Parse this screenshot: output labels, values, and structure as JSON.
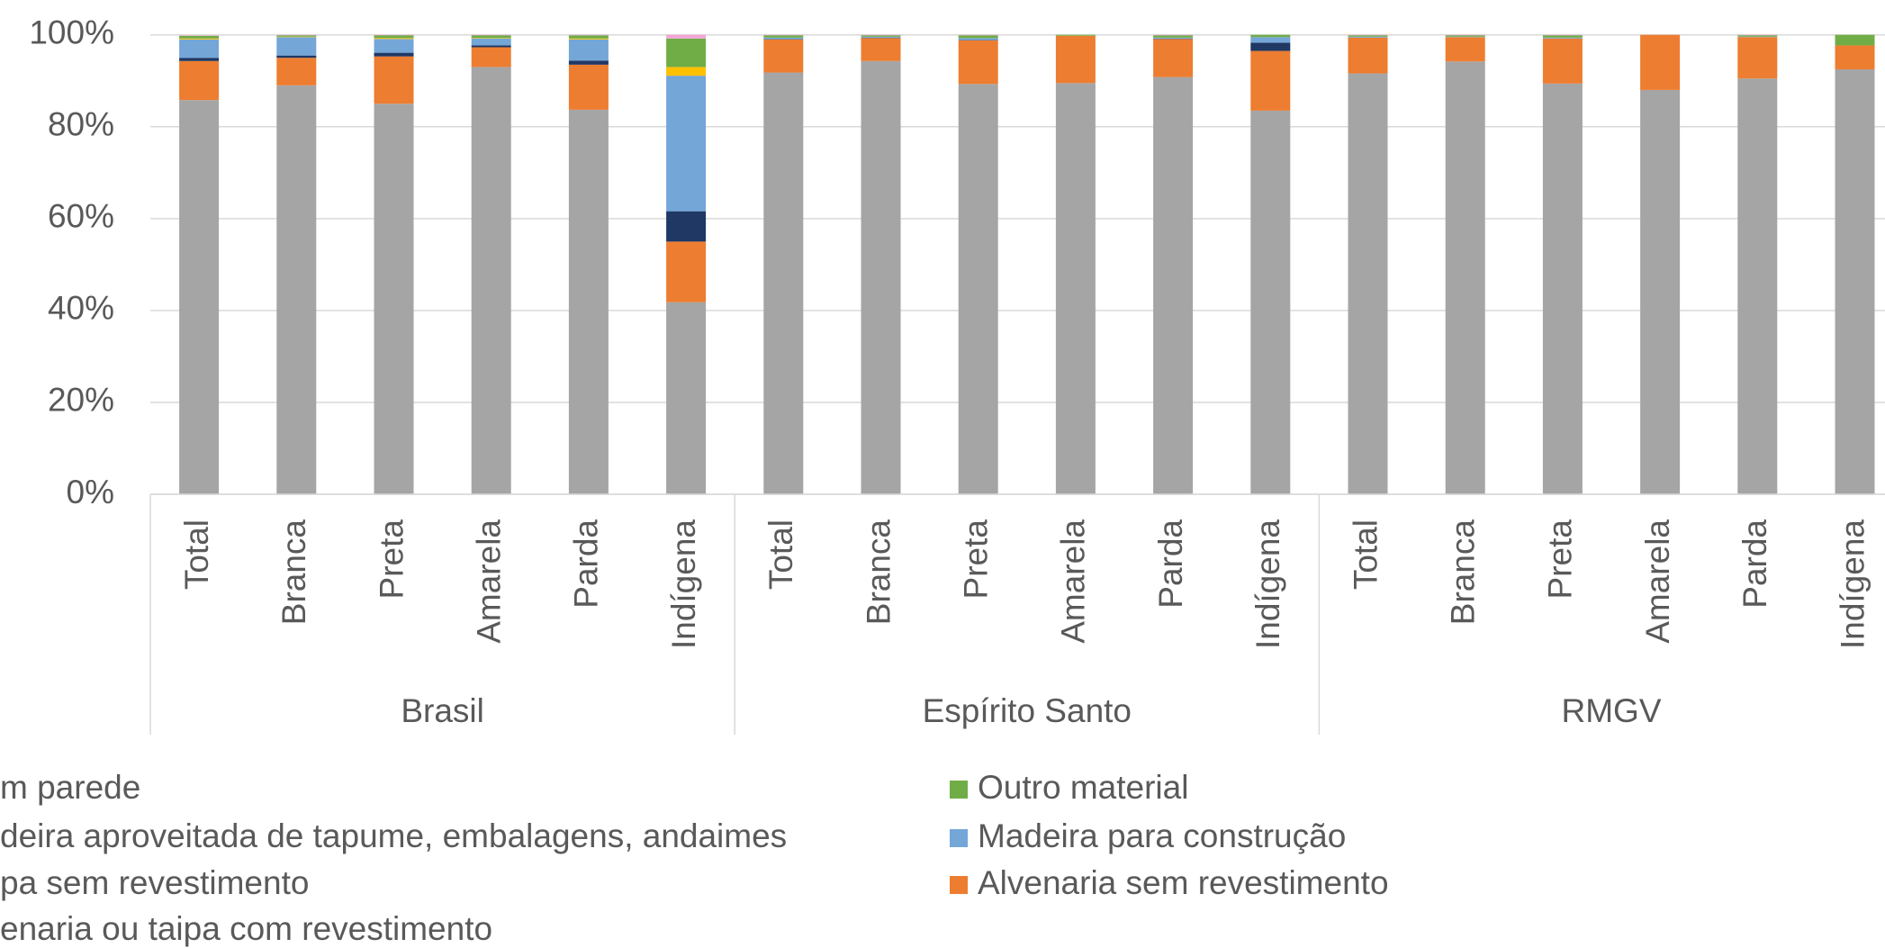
{
  "chart_data": {
    "type": "stacked_bar",
    "categories": [
      "Total",
      "Branca",
      "Preta",
      "Amarela",
      "Parda",
      "Indígena",
      "Total",
      "Branca",
      "Preta",
      "Amarela",
      "Parda",
      "Indígena",
      "Total",
      "Branca",
      "Preta",
      "Amarela",
      "Parda",
      "Indígena"
    ],
    "groups": [
      {
        "name": "Brasil",
        "size": 6
      },
      {
        "name": "Espírito Santo",
        "size": 6
      },
      {
        "name": "RMGV",
        "size": 6
      }
    ],
    "ylim": [
      0,
      100
    ],
    "yticks": [
      {
        "value": 0,
        "label": "0%"
      },
      {
        "value": 20,
        "label": "20%"
      },
      {
        "value": 40,
        "label": "40%"
      },
      {
        "value": 60,
        "label": "60%"
      },
      {
        "value": 80,
        "label": "80%"
      },
      {
        "value": 100,
        "label": "100%"
      }
    ],
    "grid": true,
    "series": [
      {
        "name": "enaria ou taipa com revestimento",
        "color": "#a5a5a5",
        "values": [
          85.8,
          89,
          85,
          93,
          83.7,
          41.8,
          91.8,
          94.3,
          89.3,
          89.5,
          90.8,
          83.5,
          91.6,
          94.2,
          89.4,
          88,
          90.5,
          92.5
        ]
      },
      {
        "name": "Alvenaria sem revestimento",
        "color": "#ed7d31",
        "values": [
          8.5,
          6,
          10.3,
          4.3,
          9.8,
          13.2,
          7.2,
          5,
          9.5,
          10.3,
          8.3,
          13,
          7.8,
          5.3,
          9.8,
          12,
          9,
          5.2
        ]
      },
      {
        "name": "deira aproveitada de tapume, embalagens, andaimes",
        "color": "#1f3864",
        "values": [
          0.7,
          0.5,
          0.8,
          0.4,
          0.9,
          6.6,
          0.1,
          0.1,
          0.1,
          0,
          0.1,
          1.8,
          0,
          0,
          0,
          0,
          0,
          0
        ]
      },
      {
        "name": "Madeira para construção",
        "color": "#74a6d8",
        "values": [
          4,
          4,
          3,
          1.5,
          4.6,
          29.5,
          0.3,
          0.2,
          0.4,
          0,
          0.2,
          1.2,
          0.2,
          0.1,
          0.2,
          0,
          0.1,
          0
        ]
      },
      {
        "name": "pa sem revestimento",
        "color": "#ffc000",
        "values": [
          0.2,
          0.1,
          0.2,
          0.1,
          0.2,
          1.9,
          0,
          0,
          0,
          0,
          0,
          0,
          0,
          0,
          0,
          0,
          0,
          0
        ]
      },
      {
        "name": "Outro material",
        "color": "#70ad47",
        "values": [
          0.6,
          0.3,
          0.6,
          0.6,
          0.7,
          6.2,
          0.5,
          0.3,
          0.6,
          0.2,
          0.5,
          0.5,
          0.3,
          0.3,
          0.5,
          0,
          0.3,
          2.3
        ]
      },
      {
        "name": "m parede",
        "color": "#f4a6d7",
        "values": [
          0.1,
          0.1,
          0.1,
          0.1,
          0.1,
          0.8,
          0.1,
          0.1,
          0.1,
          0,
          0.1,
          0,
          0.1,
          0.1,
          0.1,
          0,
          0.1,
          0
        ]
      }
    ],
    "legend_order": [
      6,
      5,
      2,
      3,
      4,
      1,
      0
    ]
  }
}
